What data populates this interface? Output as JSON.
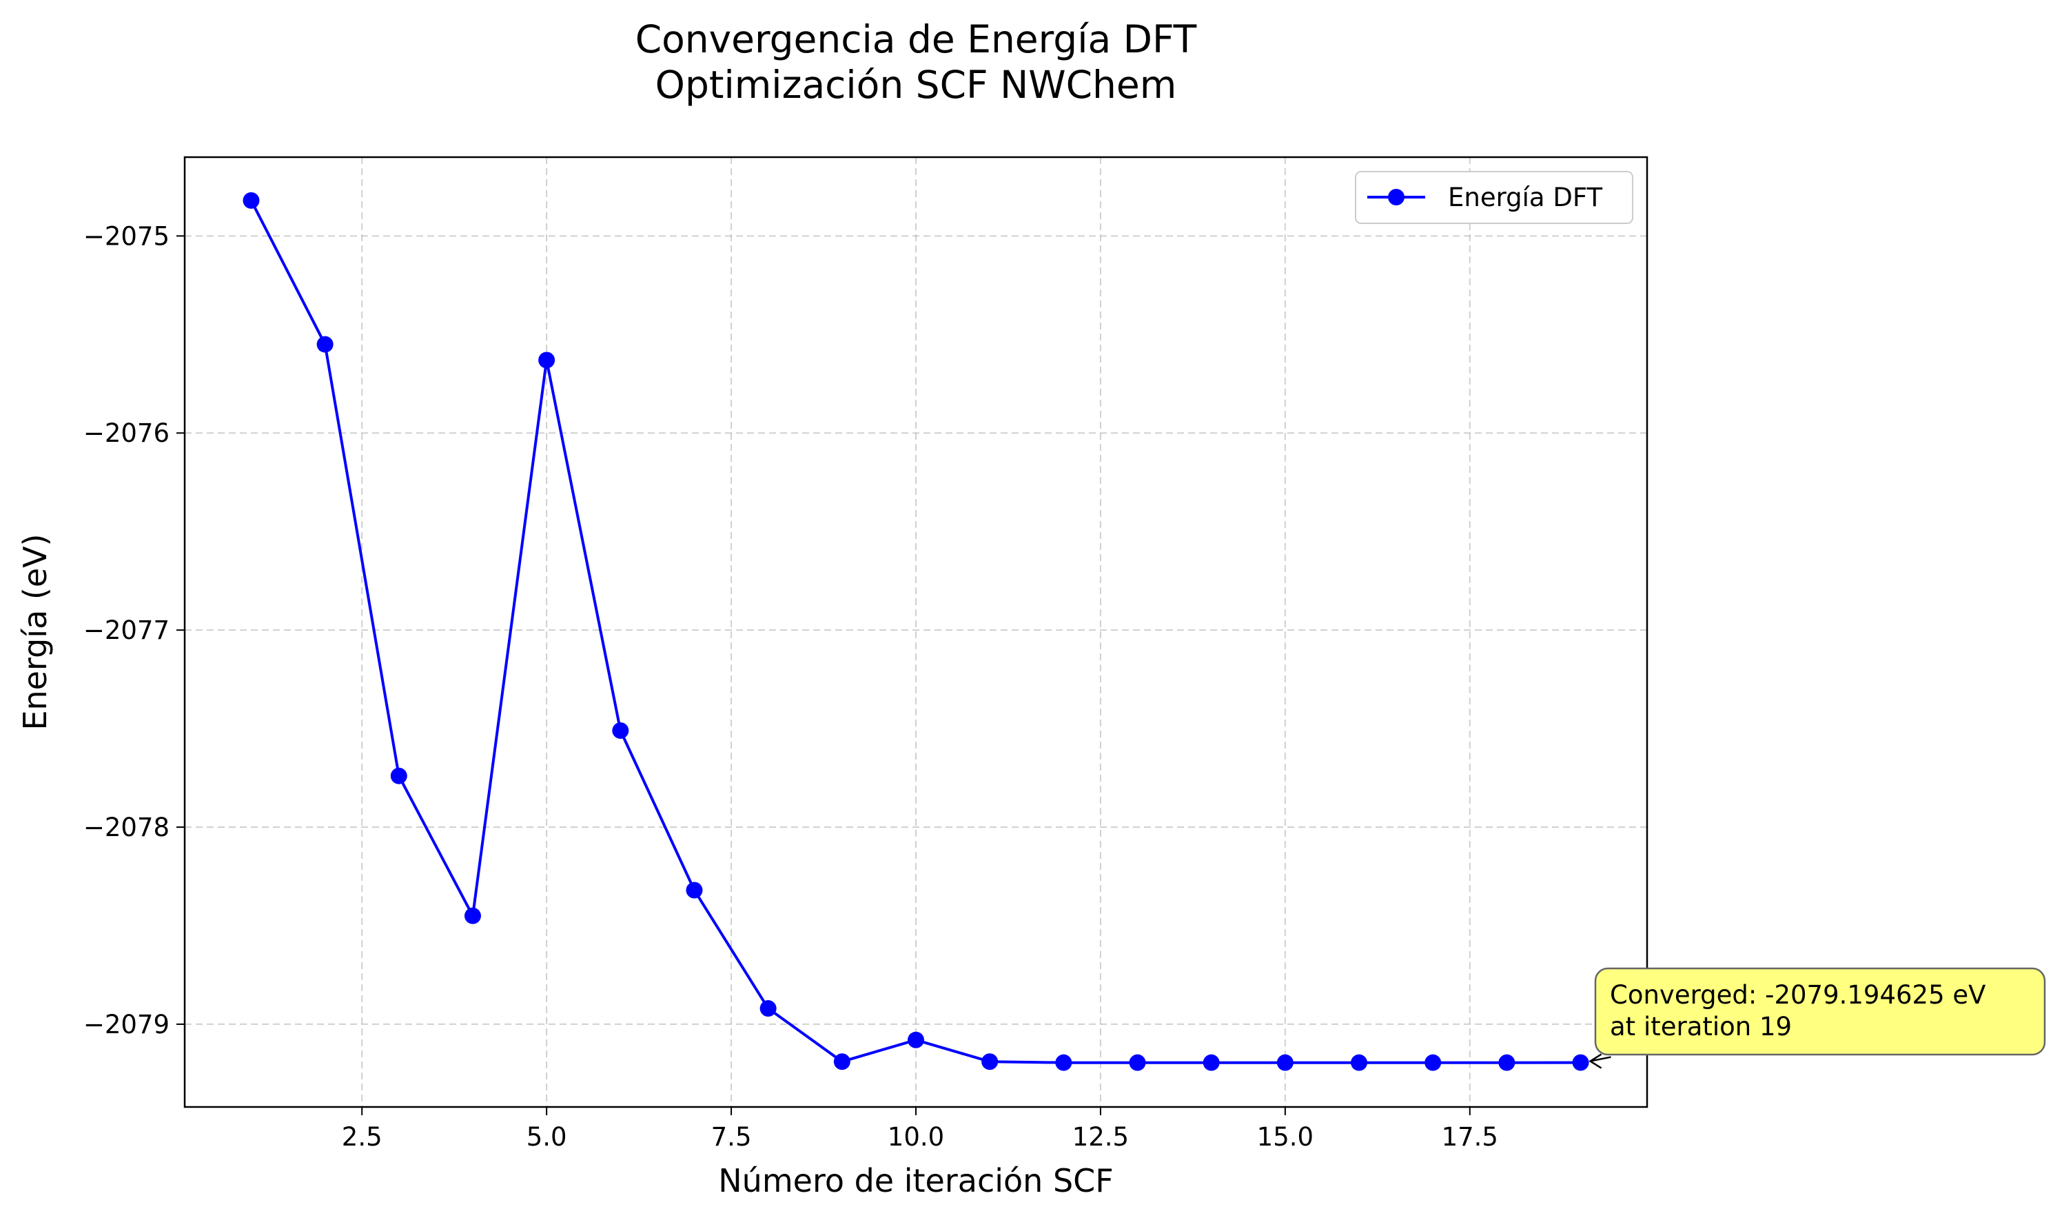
{
  "chart_data": {
    "type": "line",
    "title_lines": [
      "Convergencia de Energía DFT",
      "Optimización SCF NWChem"
    ],
    "xlabel": "Número de iteración SCF",
    "ylabel": "Energía (eV)",
    "xlim": [
      0.1,
      19.9
    ],
    "ylim": [
      -2079.42,
      -2074.6
    ],
    "xticks": [
      2.5,
      5.0,
      7.5,
      10.0,
      12.5,
      15.0,
      17.5
    ],
    "xtick_labels": [
      "2.5",
      "5.0",
      "7.5",
      "10.0",
      "12.5",
      "15.0",
      "17.5"
    ],
    "yticks": [
      -2075,
      -2076,
      -2077,
      -2078,
      -2079
    ],
    "ytick_labels": [
      "−2075",
      "−2076",
      "−2077",
      "−2078",
      "−2079"
    ],
    "grid": true,
    "legend_position": "top-right",
    "series": [
      {
        "name": "Energía DFT",
        "color": "#0000ff",
        "marker": "circle",
        "x": [
          1,
          2,
          3,
          4,
          5,
          6,
          7,
          8,
          9,
          10,
          11,
          12,
          13,
          14,
          15,
          16,
          17,
          18,
          19
        ],
        "y": [
          -2074.82,
          -2075.55,
          -2077.74,
          -2078.45,
          -2075.63,
          -2077.51,
          -2078.32,
          -2078.92,
          -2079.19,
          -2079.08,
          -2079.19,
          -2079.195,
          -2079.195,
          -2079.195,
          -2079.195,
          -2079.195,
          -2079.195,
          -2079.195,
          -2079.194625
        ]
      }
    ],
    "annotation": {
      "lines": [
        "Converged: -2079.194625 eV",
        "at iteration 19"
      ],
      "target_x": 19,
      "target_y": -2079.194625,
      "box_color": "#ffff80"
    }
  }
}
